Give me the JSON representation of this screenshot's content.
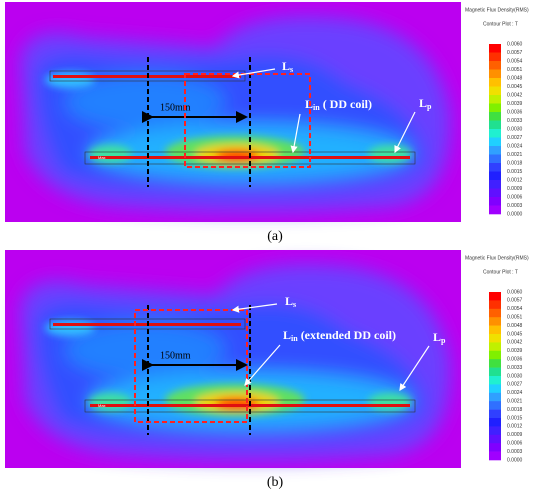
{
  "panels": [
    {
      "label": "(a)",
      "legend_title": "Magnetic Flux Density(RMS)",
      "legend_subtitle": "Contour Plot : T",
      "legend_values": [
        "0.0060",
        "0.0057",
        "0.0054",
        "0.0051",
        "0.0048",
        "0.0045",
        "0.0042",
        "0.0039",
        "0.0036",
        "0.0033",
        "0.0030",
        "0.0027",
        "0.0024",
        "0.0021",
        "0.0018",
        "0.0015",
        "0.0012",
        "0.0009",
        "0.0006",
        "0.0003",
        "0.0000"
      ],
      "annotations": {
        "ls": {
          "main": "L",
          "sub": "s"
        },
        "lin": {
          "main": "L",
          "sub": "in",
          "rest": " ( DD coil)"
        },
        "lp": {
          "main": "L",
          "sub": "p"
        },
        "distance": "150mm",
        "max": "Max"
      }
    },
    {
      "label": "(b)",
      "legend_title": "Magnetic Flux Density(RMS)",
      "legend_subtitle": "Contour Plot : T",
      "legend_values": [
        "0.0060",
        "0.0057",
        "0.0054",
        "0.0051",
        "0.0048",
        "0.0045",
        "0.0042",
        "0.0039",
        "0.0036",
        "0.0033",
        "0.0030",
        "0.0027",
        "0.0024",
        "0.0021",
        "0.0018",
        "0.0015",
        "0.0012",
        "0.0009",
        "0.0006",
        "0.0003",
        "0.0000"
      ],
      "annotations": {
        "ls": {
          "main": "L",
          "sub": "s"
        },
        "lin": {
          "main": "L",
          "sub": "in",
          "rest": " (extended DD coil)"
        },
        "lp": {
          "main": "L",
          "sub": "p"
        },
        "distance": "150mm",
        "max": "Max"
      }
    }
  ]
}
